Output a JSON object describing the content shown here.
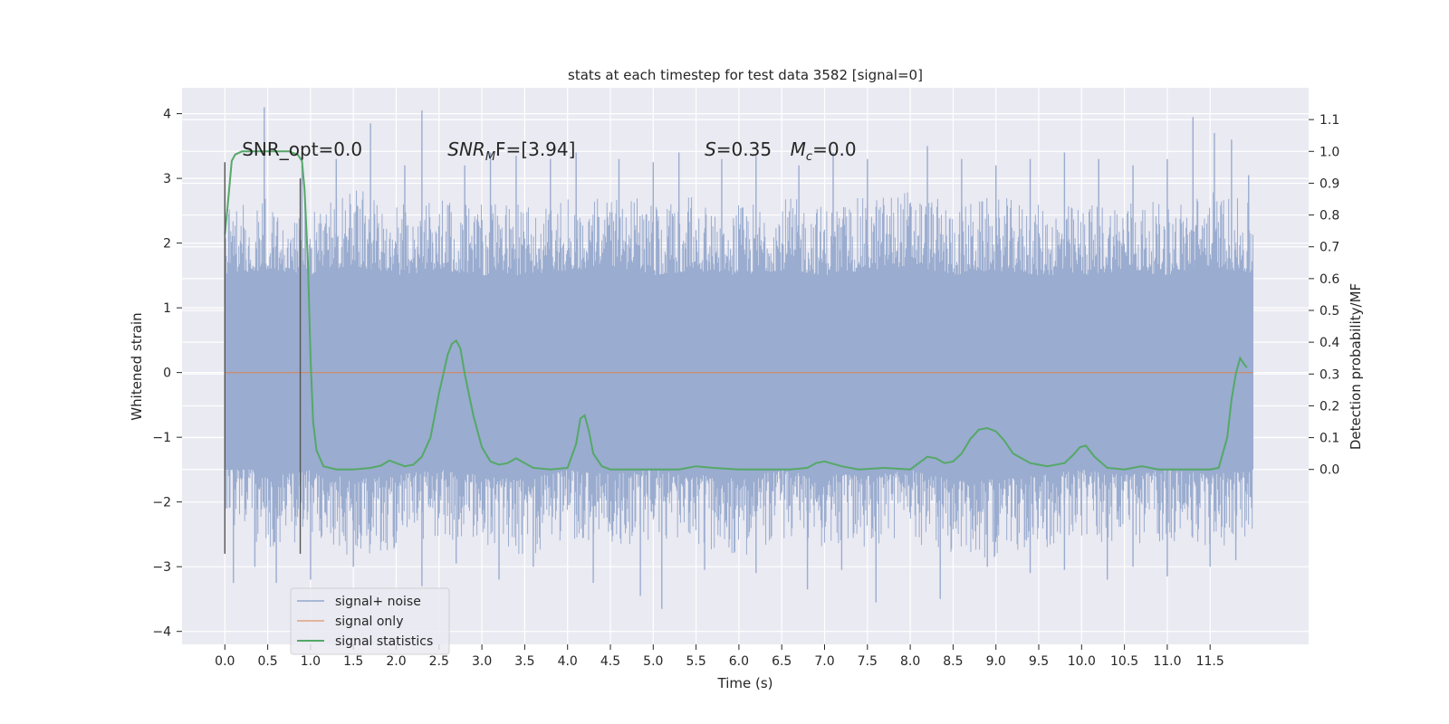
{
  "chart_data": {
    "type": "line",
    "title": "stats at each timestep for test data 3582 [signal=0]",
    "xlabel": "Time (s)",
    "ylabel_left": "Whitened strain",
    "ylabel_right": "Detection probability/MF",
    "xlim": [
      -0.5,
      12.65
    ],
    "ylim_left": [
      -4.2,
      4.4
    ],
    "ylim_right": [
      -0.55,
      1.2
    ],
    "x_ticks": [
      0.0,
      0.5,
      1.0,
      1.5,
      2.0,
      2.5,
      3.0,
      3.5,
      4.0,
      4.5,
      5.0,
      5.5,
      6.0,
      6.5,
      7.0,
      7.5,
      8.0,
      8.5,
      9.0,
      9.5,
      10.0,
      10.5,
      11.0,
      11.5
    ],
    "x_tick_labels": [
      "0.0",
      "0.5",
      "1.0",
      "1.5",
      "2.0",
      "2.5",
      "3.0",
      "3.5",
      "4.0",
      "4.5",
      "5.0",
      "5.5",
      "6.0",
      "6.5",
      "7.0",
      "7.5",
      "8.0",
      "8.5",
      "9.0",
      "9.5",
      "10.0",
      "10.5",
      "11.0",
      "11.5"
    ],
    "y_left_ticks": [
      -4,
      -3,
      -2,
      -1,
      0,
      1,
      2,
      3,
      4
    ],
    "y_left_tick_labels": [
      "−4",
      "−3",
      "−2",
      "−1",
      "0",
      "1",
      "2",
      "3",
      "4"
    ],
    "y_right_ticks": [
      0.0,
      0.1,
      0.2,
      0.3,
      0.4,
      0.5,
      0.6,
      0.7,
      0.8,
      0.9,
      1.0,
      1.1
    ],
    "y_right_tick_labels": [
      "0.0",
      "0.1",
      "0.2",
      "0.3",
      "0.4",
      "0.5",
      "0.6",
      "0.7",
      "0.8",
      "0.9",
      "1.0",
      "1.1"
    ],
    "grid": true,
    "legend_position": "lower-left",
    "noise": {
      "x_range": [
        0.0,
        12.0
      ],
      "envelope_upper": [
        2.0,
        2.1,
        2.0,
        2.2,
        2.0,
        2.1,
        2.0,
        2.0,
        2.1,
        2.2,
        2.0,
        2.1,
        2.0,
        2.1,
        2.0,
        2.1,
        2.2,
        2.0,
        2.1,
        2.0,
        2.0,
        2.1,
        2.0,
        2.2,
        2.0
      ],
      "envelope_lower": [
        -1.8,
        -2.1,
        -2.0,
        -2.2,
        -2.1,
        -2.0,
        -2.1,
        -2.2,
        -2.0,
        -2.1,
        -2.0,
        -2.1,
        -2.2,
        -2.0,
        -2.1,
        -2.1,
        -2.0,
        -2.2,
        -2.2,
        -2.1,
        -2.0,
        -2.1,
        -2.0,
        -2.1,
        -2.0
      ],
      "upper_spikes": [
        [
          0.46,
          4.1
        ],
        [
          1.7,
          3.85
        ],
        [
          2.3,
          4.05
        ],
        [
          3.1,
          3.4
        ],
        [
          3.4,
          3.35
        ],
        [
          4.1,
          3.4
        ],
        [
          5.3,
          3.4
        ],
        [
          8.2,
          3.5
        ],
        [
          11.3,
          3.95
        ],
        [
          11.55,
          3.7
        ],
        [
          11.75,
          3.6
        ],
        [
          11.95,
          3.05
        ],
        [
          0.9,
          3.2
        ],
        [
          1.3,
          3.3
        ],
        [
          2.1,
          3.2
        ],
        [
          2.8,
          3.2
        ],
        [
          3.8,
          3.3
        ],
        [
          4.6,
          3.3
        ],
        [
          5.0,
          3.25
        ],
        [
          5.8,
          3.3
        ],
        [
          6.2,
          3.35
        ],
        [
          6.7,
          3.2
        ],
        [
          7.1,
          3.4
        ],
        [
          7.5,
          3.3
        ],
        [
          8.6,
          3.3
        ],
        [
          9.0,
          3.2
        ],
        [
          9.4,
          3.3
        ],
        [
          9.8,
          3.4
        ],
        [
          10.2,
          3.3
        ],
        [
          10.6,
          3.2
        ],
        [
          11.0,
          3.3
        ]
      ],
      "lower_spikes": [
        [
          0.1,
          -3.25
        ],
        [
          0.6,
          -3.25
        ],
        [
          1.0,
          -3.2
        ],
        [
          2.3,
          -3.3
        ],
        [
          3.2,
          -3.2
        ],
        [
          4.3,
          -3.25
        ],
        [
          4.85,
          -3.45
        ],
        [
          5.1,
          -3.65
        ],
        [
          6.8,
          -3.35
        ],
        [
          7.6,
          -3.55
        ],
        [
          8.35,
          -3.5
        ],
        [
          9.4,
          -3.1
        ],
        [
          10.3,
          -3.2
        ],
        [
          11.0,
          -3.15
        ],
        [
          11.5,
          -3.0
        ],
        [
          0.35,
          -3.0
        ],
        [
          1.5,
          -3.0
        ],
        [
          2.7,
          -2.95
        ],
        [
          3.6,
          -3.0
        ],
        [
          5.6,
          -3.05
        ],
        [
          6.2,
          -3.1
        ],
        [
          7.2,
          -3.05
        ],
        [
          8.9,
          -3.0
        ],
        [
          9.8,
          -3.05
        ],
        [
          10.6,
          -3.0
        ],
        [
          11.8,
          -2.9
        ]
      ]
    },
    "series": [
      {
        "name": "signal+ noise",
        "color": "#4c72b0"
      },
      {
        "name": "signal only",
        "color": "#dd8452",
        "x": [
          0.0,
          12.0
        ],
        "y": [
          0.0,
          0.0
        ]
      },
      {
        "name": "signal statistics",
        "color": "#55a868",
        "x": [
          0.0,
          0.04,
          0.08,
          0.12,
          0.2,
          0.3,
          0.45,
          0.6,
          0.75,
          0.85,
          0.9,
          0.93,
          0.97,
          1.0,
          1.03,
          1.07,
          1.15,
          1.3,
          1.5,
          1.7,
          1.82,
          1.92,
          2.0,
          2.1,
          2.2,
          2.3,
          2.4,
          2.5,
          2.6,
          2.65,
          2.7,
          2.75,
          2.8,
          2.9,
          3.0,
          3.1,
          3.2,
          3.3,
          3.4,
          3.5,
          3.6,
          3.8,
          4.0,
          4.1,
          4.15,
          4.2,
          4.25,
          4.3,
          4.4,
          4.5,
          4.7,
          5.0,
          5.3,
          5.5,
          5.7,
          6.0,
          6.3,
          6.6,
          6.8,
          6.9,
          7.0,
          7.2,
          7.4,
          7.7,
          8.0,
          8.1,
          8.2,
          8.3,
          8.4,
          8.5,
          8.6,
          8.7,
          8.8,
          8.9,
          9.0,
          9.1,
          9.2,
          9.4,
          9.6,
          9.8,
          9.9,
          9.98,
          10.05,
          10.15,
          10.3,
          10.5,
          10.7,
          10.9,
          11.2,
          11.5,
          11.6,
          11.7,
          11.75,
          11.8,
          11.85,
          11.9,
          11.93
        ],
        "y": [
          0.74,
          0.85,
          0.97,
          0.99,
          1.0,
          1.0,
          1.0,
          1.0,
          1.0,
          0.99,
          0.97,
          0.88,
          0.65,
          0.35,
          0.15,
          0.06,
          0.01,
          0.0,
          0.0,
          0.005,
          0.012,
          0.028,
          0.02,
          0.01,
          0.015,
          0.04,
          0.1,
          0.24,
          0.36,
          0.395,
          0.405,
          0.38,
          0.3,
          0.17,
          0.07,
          0.025,
          0.015,
          0.02,
          0.035,
          0.02,
          0.005,
          0.0,
          0.005,
          0.08,
          0.16,
          0.17,
          0.12,
          0.05,
          0.01,
          0.0,
          0.0,
          0.0,
          0.0,
          0.01,
          0.005,
          0.0,
          0.0,
          0.0,
          0.005,
          0.02,
          0.025,
          0.01,
          0.0,
          0.005,
          0.0,
          0.02,
          0.04,
          0.035,
          0.02,
          0.025,
          0.05,
          0.095,
          0.125,
          0.13,
          0.12,
          0.09,
          0.05,
          0.02,
          0.01,
          0.02,
          0.045,
          0.07,
          0.075,
          0.04,
          0.005,
          0.0,
          0.01,
          0.0,
          0.0,
          0.0,
          0.005,
          0.1,
          0.22,
          0.3,
          0.35,
          0.33,
          0.32
        ]
      }
    ],
    "vlines": [
      {
        "x": 0.0,
        "y": [
          -2.8,
          3.25
        ]
      },
      {
        "x": 0.88,
        "y": [
          -2.8,
          3.0
        ]
      }
    ],
    "annotations": [
      {
        "text": "SNR_opt=0.0",
        "x": 0.2,
        "y": 3.35
      },
      {
        "text": "SNR",
        "sub": "M",
        "after": "F=[3.94]",
        "x": 2.6,
        "y": 3.35
      },
      {
        "text": "S",
        "after": "=0.35",
        "x": 5.6,
        "y": 3.35
      },
      {
        "text": "M",
        "sub": "c",
        "after": "=0.0",
        "x": 6.6,
        "y": 3.35
      }
    ],
    "legend": [
      {
        "label": "signal+ noise",
        "color": "#4c72b0"
      },
      {
        "label": "signal only",
        "color": "#dd8452"
      },
      {
        "label": "signal statistics",
        "color": "#55a868"
      }
    ]
  }
}
